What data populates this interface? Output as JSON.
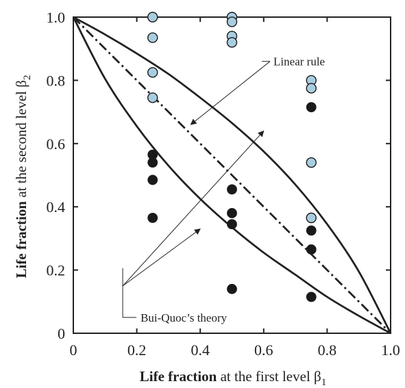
{
  "chart_data": {
    "type": "scatter",
    "xlim": [
      0,
      1.0
    ],
    "ylim": [
      0,
      1.0
    ],
    "grid": false,
    "x_ticks": [
      "0",
      "0.2",
      "0.4",
      "0.6",
      "0.8",
      "1.0"
    ],
    "y_ticks": [
      "0",
      "0.2",
      "0.4",
      "0.6",
      "0.8",
      "1.0"
    ],
    "xlabel": {
      "bold": "Life fraction",
      "rest": " at the first level β",
      "sub": "1"
    },
    "ylabel": {
      "bold": "Life fraction",
      "rest": " at the second level β",
      "sub": "2"
    },
    "series": [
      {
        "marker": "light-blue-circle",
        "color": "#a9cde0",
        "points": [
          [
            0.25,
            1.0
          ],
          [
            0.25,
            0.935
          ],
          [
            0.25,
            0.825
          ],
          [
            0.25,
            0.745
          ],
          [
            0.5,
            1.0
          ],
          [
            0.5,
            0.985
          ],
          [
            0.5,
            0.94
          ],
          [
            0.5,
            0.92
          ],
          [
            0.75,
            0.8
          ],
          [
            0.75,
            0.775
          ],
          [
            0.75,
            0.54
          ],
          [
            0.75,
            0.365
          ]
        ]
      },
      {
        "marker": "black-circle",
        "color": "#1a1a1a",
        "points": [
          [
            0.25,
            0.565
          ],
          [
            0.25,
            0.54
          ],
          [
            0.25,
            0.485
          ],
          [
            0.25,
            0.365
          ],
          [
            0.5,
            0.455
          ],
          [
            0.5,
            0.38
          ],
          [
            0.5,
            0.345
          ],
          [
            0.5,
            0.14
          ],
          [
            0.75,
            0.715
          ],
          [
            0.75,
            0.325
          ],
          [
            0.75,
            0.265
          ],
          [
            0.75,
            0.115
          ]
        ]
      }
    ],
    "curves": [
      {
        "name": "linear-rule",
        "style": "dash-dot",
        "points": [
          [
            0,
            1.0
          ],
          [
            1.0,
            0
          ]
        ]
      },
      {
        "name": "bui-quoc-upper",
        "style": "solid",
        "points": [
          [
            0,
            1.0
          ],
          [
            0.1,
            0.945
          ],
          [
            0.2,
            0.885
          ],
          [
            0.3,
            0.82
          ],
          [
            0.4,
            0.745
          ],
          [
            0.5,
            0.665
          ],
          [
            0.6,
            0.575
          ],
          [
            0.7,
            0.47
          ],
          [
            0.8,
            0.345
          ],
          [
            0.9,
            0.195
          ],
          [
            1.0,
            0
          ]
        ]
      },
      {
        "name": "bui-quoc-lower",
        "style": "solid",
        "points": [
          [
            0,
            1.0
          ],
          [
            0.1,
            0.805
          ],
          [
            0.2,
            0.655
          ],
          [
            0.3,
            0.53
          ],
          [
            0.4,
            0.425
          ],
          [
            0.5,
            0.335
          ],
          [
            0.6,
            0.255
          ],
          [
            0.7,
            0.185
          ],
          [
            0.8,
            0.115
          ],
          [
            0.9,
            0.055
          ],
          [
            1.0,
            0
          ]
        ]
      }
    ],
    "annotations": [
      {
        "text": "Linear rule",
        "label_at": [
          0.62,
          0.86
        ],
        "arrows_to": [
          [
            0.37,
            0.66
          ]
        ]
      },
      {
        "text": "Bui-Quoc’s theory",
        "label_at": [
          0.16,
          0.05
        ],
        "arrows_to": [
          [
            0.6,
            0.64
          ],
          [
            0.4,
            0.33
          ]
        ]
      }
    ]
  },
  "colors": {
    "axis": "#222222",
    "curve": "#222222",
    "light_marker": "#a9cde0",
    "dark_marker": "#1a1a1a"
  }
}
